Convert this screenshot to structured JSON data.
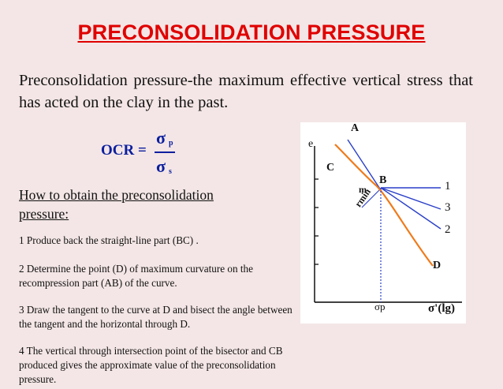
{
  "title": "PRECONSOLIDATION PRESSURE",
  "intro": "Preconsolidation pressure-the maximum effective vertical stress that has acted on the clay in the past.",
  "formula": {
    "lhs": "OCR =",
    "numerator": "σ",
    "numerator_sub": "p",
    "denominator": "σ",
    "denominator_sub": "s"
  },
  "how_heading": "How to obtain the preconsolidation pressure:",
  "steps": [
    "1 Produce back the straight-line part (BC) .",
    "2 Determine the point (D) of maximum curvature on the recompression part (AB) of the curve.",
    "3 Draw the tangent to the curve at D and bisect the angle between the tangent and the horizontal through D.",
    "4 The vertical through intersection point of the bisector and CB produced gives the approximate value of the preconsolidation pressure."
  ],
  "chart_data": {
    "type": "diagram",
    "y_axis_label": "e",
    "x_axis_label": "σ'(lg)",
    "x_marker_label": "σp",
    "point_labels": [
      "A",
      "B",
      "C",
      "D"
    ],
    "line_labels": [
      "1",
      "2",
      "3"
    ],
    "annotation_m": "m",
    "annotation_rmin": "rmin",
    "colors": {
      "curve": "#f07a1a",
      "lines": "#2a3fc8",
      "axes": "#000000",
      "title": "#e00000",
      "formula": "#0b1f9e"
    }
  }
}
